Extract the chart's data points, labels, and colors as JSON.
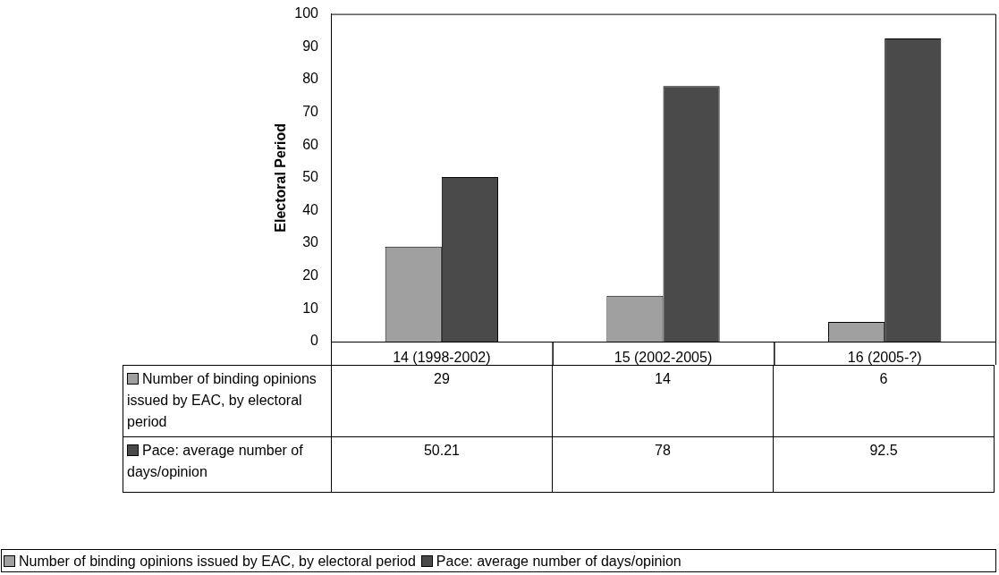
{
  "chart_data": {
    "type": "bar",
    "ylabel": "Electoral Period",
    "categories": [
      "14 (1998-2002)",
      "15 (2002-2005)",
      "16 (2005-?)"
    ],
    "series": [
      {
        "name": "Number of binding opinions issued by EAC, by electoral period",
        "color": "#a0a0a0",
        "values": [
          29,
          14,
          6
        ]
      },
      {
        "name": "Pace: average number of days/opinion",
        "color": "#4a4a4a",
        "values": [
          50.21,
          78,
          92.5
        ]
      }
    ],
    "ylim": [
      0,
      100
    ],
    "yticks": [
      0,
      10,
      20,
      30,
      40,
      50,
      60,
      70,
      80,
      90,
      100
    ],
    "data_labels": true,
    "legend": "bottom"
  }
}
